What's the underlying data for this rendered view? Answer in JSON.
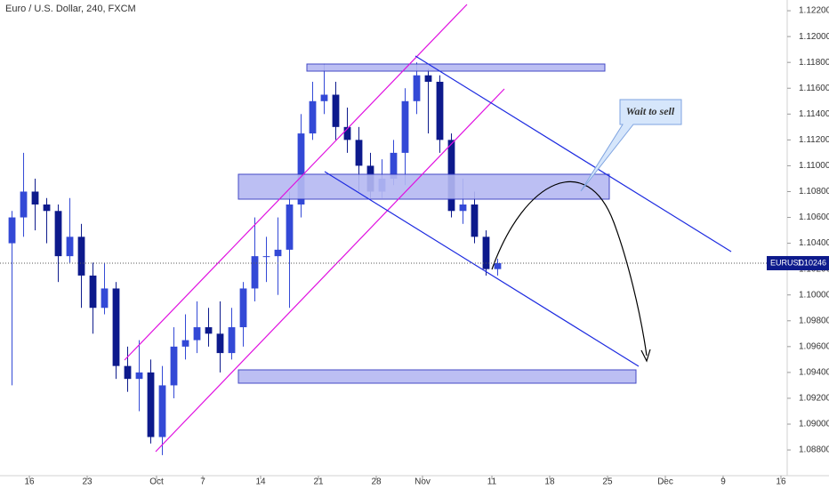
{
  "chart_data": {
    "type": "candlestick",
    "title": "Euro / U.S. Dollar, 240, FXCM",
    "symbol": "EURUSD",
    "last_price": 1.10246,
    "annotation": "Wait to sell",
    "up_color": "#3349d6",
    "down_color": "#0d1a8c",
    "xlim": [
      -2.54,
      65.54
    ],
    "ylim": [
      1.08601,
      1.12283
    ],
    "xticks": [
      {
        "value": 0,
        "label": "16"
      },
      {
        "value": 5,
        "label": "23"
      },
      {
        "value": 11,
        "label": "Oct"
      },
      {
        "value": 15,
        "label": "7"
      },
      {
        "value": 20,
        "label": "14"
      },
      {
        "value": 25,
        "label": "21"
      },
      {
        "value": 30,
        "label": "28"
      },
      {
        "value": 34,
        "label": "Nov"
      },
      {
        "value": 40,
        "label": "11"
      },
      {
        "value": 45,
        "label": "18"
      },
      {
        "value": 50,
        "label": "25"
      },
      {
        "value": 55,
        "label": "Dec"
      },
      {
        "value": 60,
        "label": "9"
      },
      {
        "value": 65,
        "label": "16"
      }
    ],
    "yticks": [
      {
        "value": 1.122,
        "label": "1.12200"
      },
      {
        "value": 1.12,
        "label": "1.12000"
      },
      {
        "value": 1.118,
        "label": "1.11800"
      },
      {
        "value": 1.116,
        "label": "1.11600"
      },
      {
        "value": 1.114,
        "label": "1.11400"
      },
      {
        "value": 1.112,
        "label": "1.11200"
      },
      {
        "value": 1.11,
        "label": "1.11000"
      },
      {
        "value": 1.108,
        "label": "1.10800"
      },
      {
        "value": 1.106,
        "label": "1.10600"
      },
      {
        "value": 1.104,
        "label": "1.10400"
      },
      {
        "value": 1.102,
        "label": "1.10200"
      },
      {
        "value": 1.1,
        "label": "1.10000"
      },
      {
        "value": 1.098,
        "label": "1.09800"
      },
      {
        "value": 1.096,
        "label": "1.09600"
      },
      {
        "value": 1.094,
        "label": "1.09400"
      },
      {
        "value": 1.092,
        "label": "1.09200"
      },
      {
        "value": 1.09,
        "label": "1.09000"
      },
      {
        "value": 1.088,
        "label": "1.08800"
      }
    ],
    "x": [
      -1.5,
      -0.5,
      0.5,
      1.5,
      2.5,
      3.5,
      4.5,
      5.5,
      6.5,
      7.5,
      8.5,
      9.5,
      10.5,
      11.5,
      12.5,
      13.5,
      14.5,
      15.5,
      16.5,
      17.5,
      18.5,
      19.5,
      20.5,
      21.5,
      22.5,
      23.5,
      24.5,
      25.5,
      26.5,
      27.5,
      28.5,
      29.5,
      30.5,
      31.5,
      32.5,
      33.5,
      34.5,
      35.5,
      36.5,
      37.5,
      38.5,
      39.5,
      40.5
    ],
    "open": [
      1.104,
      1.106,
      1.108,
      1.107,
      1.1065,
      1.103,
      1.1045,
      1.1015,
      1.099,
      1.1005,
      1.0945,
      1.0935,
      1.094,
      1.089,
      1.093,
      1.096,
      1.0965,
      1.0975,
      1.097,
      1.0955,
      1.0975,
      1.1005,
      1.103,
      1.103,
      1.1035,
      1.107,
      1.1125,
      1.115,
      1.1155,
      1.113,
      1.112,
      1.11,
      1.108,
      1.109,
      1.111,
      1.115,
      1.117,
      1.1165,
      1.112,
      1.1065,
      1.107,
      1.1045,
      1.102
    ],
    "high": [
      1.1065,
      1.111,
      1.109,
      1.1075,
      1.107,
      1.1075,
      1.1055,
      1.1025,
      1.1025,
      1.101,
      1.096,
      1.0965,
      1.095,
      1.0945,
      1.0975,
      1.0985,
      1.0995,
      1.099,
      1.0995,
      1.099,
      1.101,
      1.106,
      1.1045,
      1.106,
      1.108,
      1.114,
      1.1165,
      1.1179,
      1.1165,
      1.1145,
      1.113,
      1.111,
      1.1105,
      1.112,
      1.116,
      1.118,
      1.1175,
      1.117,
      1.1125,
      1.109,
      1.108,
      1.105,
      1.1028
    ],
    "low": [
      1.093,
      1.1045,
      1.105,
      1.104,
      1.101,
      1.1025,
      1.099,
      1.097,
      1.0985,
      1.0935,
      1.0925,
      1.091,
      1.0885,
      1.0876,
      1.092,
      1.095,
      1.0955,
      1.096,
      1.094,
      1.095,
      1.096,
      1.0995,
      1.101,
      1.1,
      1.099,
      1.106,
      1.112,
      1.114,
      1.112,
      1.111,
      1.108,
      1.1075,
      1.1075,
      1.1085,
      1.1085,
      1.114,
      1.1125,
      1.111,
      1.106,
      1.1055,
      1.104,
      1.1015,
      1.1015
    ],
    "close": [
      1.106,
      1.108,
      1.107,
      1.1065,
      1.103,
      1.1045,
      1.1015,
      1.099,
      1.1005,
      1.0945,
      1.0935,
      1.094,
      1.089,
      1.093,
      1.096,
      1.0965,
      1.0975,
      1.097,
      1.0955,
      1.0975,
      1.1005,
      1.103,
      1.103,
      1.1035,
      1.107,
      1.1125,
      1.115,
      1.1155,
      1.113,
      1.112,
      1.11,
      1.108,
      1.109,
      1.111,
      1.115,
      1.117,
      1.1165,
      1.112,
      1.1065,
      1.107,
      1.1045,
      1.102,
      1.10246
    ]
  }
}
